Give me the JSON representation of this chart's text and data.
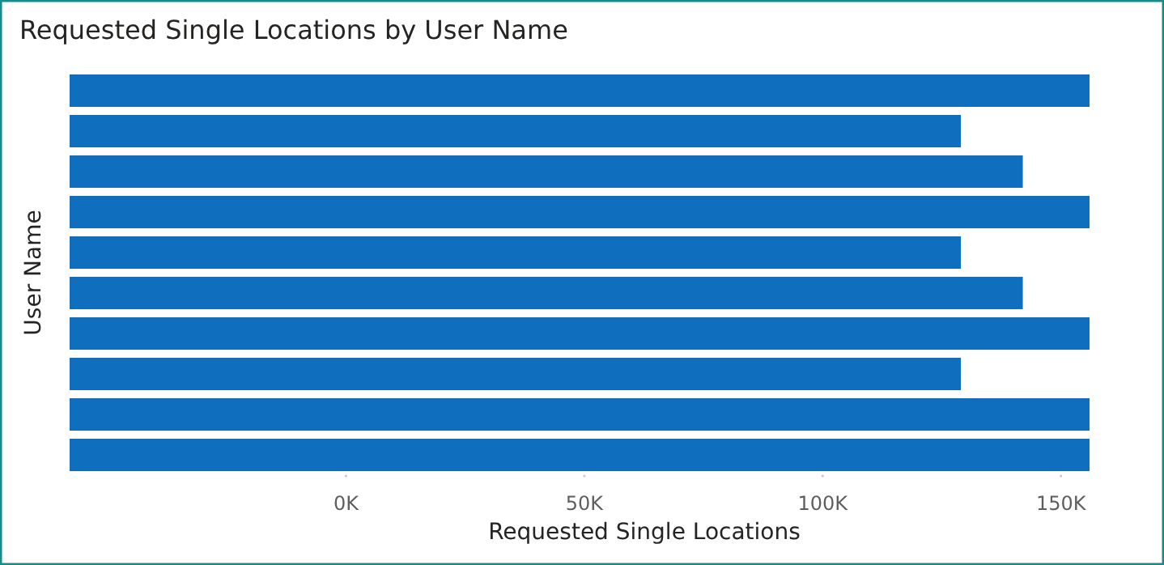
{
  "chart_data": {
    "type": "bar",
    "orientation": "horizontal",
    "title": "Requested Single Locations by User Name",
    "xlabel": "Requested Single Locations",
    "ylabel": "User Name",
    "categories": [
      null,
      null,
      null,
      null,
      null,
      null,
      null,
      null,
      null,
      null
    ],
    "base": [
      -58,
      -58,
      -58,
      -58,
      -58,
      -58,
      -58,
      -58,
      -58,
      -58
    ],
    "values": [
      214,
      187,
      200,
      214,
      187,
      200,
      214,
      187,
      214,
      214
    ],
    "color": "#106ebe",
    "xlim": [
      -58,
      156
    ],
    "xticks": [
      {
        "value": 0,
        "label": "0K"
      },
      {
        "value": 50,
        "label": "50K"
      },
      {
        "value": 100,
        "label": "100K"
      },
      {
        "value": 150,
        "label": "150K"
      }
    ],
    "grid": false
  }
}
